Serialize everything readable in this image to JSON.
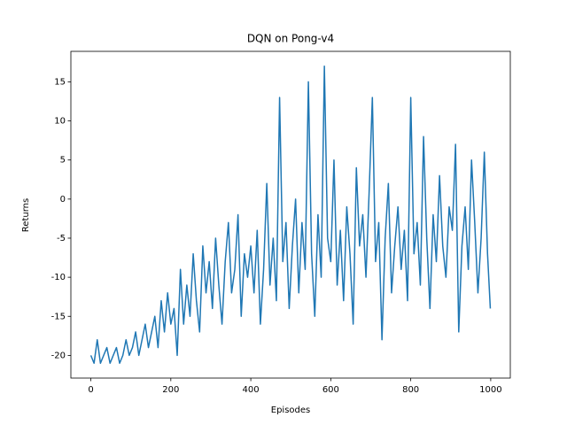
{
  "chart_data": {
    "type": "line",
    "title": "DQN on Pong-v4",
    "x_label": "Episodes",
    "y_label": "Returns",
    "x": [
      0,
      8,
      16,
      24,
      32,
      40,
      48,
      56,
      64,
      72,
      80,
      88,
      96,
      104,
      112,
      120,
      128,
      136,
      144,
      152,
      160,
      168,
      176,
      184,
      192,
      200,
      208,
      216,
      224,
      232,
      240,
      248,
      256,
      264,
      272,
      280,
      288,
      296,
      304,
      312,
      320,
      328,
      336,
      344,
      352,
      360,
      368,
      376,
      384,
      392,
      400,
      408,
      416,
      424,
      432,
      440,
      448,
      456,
      464,
      472,
      480,
      488,
      496,
      504,
      512,
      520,
      528,
      536,
      544,
      552,
      560,
      568,
      576,
      584,
      592,
      600,
      608,
      616,
      624,
      632,
      640,
      648,
      656,
      664,
      672,
      680,
      688,
      696,
      704,
      712,
      720,
      728,
      736,
      744,
      752,
      760,
      768,
      776,
      784,
      792,
      800,
      808,
      816,
      824,
      832,
      840,
      848,
      856,
      864,
      872,
      880,
      888,
      896,
      904,
      912,
      920,
      928,
      936,
      944,
      952,
      960,
      968,
      976,
      984,
      992,
      999
    ],
    "series": [
      {
        "name": "Returns",
        "color": "#1f77b4",
        "values": [
          -20,
          -21,
          -18,
          -21,
          -20,
          -19,
          -21,
          -20,
          -19,
          -21,
          -20,
          -18,
          -20,
          -19,
          -17,
          -20,
          -18,
          -16,
          -19,
          -17,
          -15,
          -19,
          -13,
          -17,
          -12,
          -16,
          -14,
          -20,
          -9,
          -16,
          -11,
          -15,
          -7,
          -13,
          -17,
          -6,
          -12,
          -8,
          -14,
          -5,
          -11,
          -16,
          -8,
          -3,
          -12,
          -9,
          -2,
          -15,
          -7,
          -10,
          -6,
          -12,
          -4,
          -16,
          -9,
          2,
          -11,
          -5,
          -13,
          13,
          -8,
          -3,
          -14,
          -6,
          0,
          -12,
          -3,
          -9,
          15,
          -7,
          -15,
          -2,
          -10,
          17,
          -5,
          -8,
          5,
          -11,
          -4,
          -13,
          -1,
          -7,
          -16,
          4,
          -6,
          -2,
          -10,
          1,
          13,
          -8,
          -3,
          -18,
          -5,
          2,
          -12,
          -6,
          -1,
          -9,
          -4,
          -13,
          13,
          -7,
          -3,
          -11,
          8,
          -5,
          -14,
          -2,
          -8,
          3,
          -6,
          -10,
          -1,
          -4,
          7,
          -17,
          -6,
          -1,
          -9,
          5,
          -3,
          -12,
          -5,
          6,
          -7,
          -14
        ]
      }
    ],
    "xlim": [
      -49.95,
      1048.95
    ],
    "ylim": [
      -22.9,
      18.9
    ],
    "xticks": [
      0,
      200,
      400,
      600,
      800,
      1000
    ],
    "yticks": [
      -20,
      -15,
      -10,
      -5,
      0,
      5,
      10,
      15
    ]
  }
}
